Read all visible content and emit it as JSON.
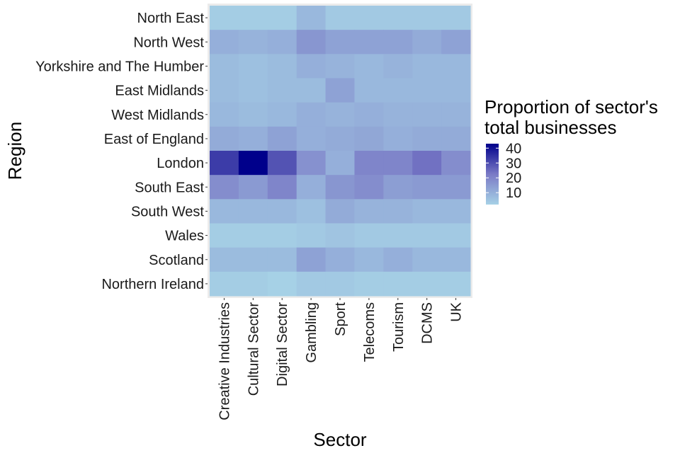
{
  "chart_data": {
    "type": "heatmap",
    "xlabel": "Sector",
    "ylabel": "Region",
    "x_categories": [
      "Creative Industries",
      "Cultural Sector",
      "Digital Sector",
      "Gambling",
      "Sport",
      "Telecoms",
      "Tourism",
      "DCMS",
      "UK"
    ],
    "y_categories": [
      "North East",
      "North West",
      "Yorkshire and The Humber",
      "East Midlands",
      "West Midlands",
      "East of England",
      "London",
      "South East",
      "South West",
      "Wales",
      "Scotland",
      "Northern Ireland"
    ],
    "values": [
      [
        3,
        3,
        3,
        8,
        4,
        4,
        4,
        4,
        4
      ],
      [
        10,
        9,
        10,
        16,
        13,
        13,
        13,
        11,
        13
      ],
      [
        7,
        6,
        7,
        10,
        9,
        8,
        9,
        8,
        8
      ],
      [
        7,
        6,
        7,
        7,
        13,
        8,
        8,
        8,
        8
      ],
      [
        8,
        7,
        8,
        10,
        9,
        10,
        9,
        9,
        9
      ],
      [
        11,
        10,
        13,
        10,
        11,
        12,
        10,
        11,
        11
      ],
      [
        33,
        43,
        29,
        17,
        10,
        20,
        20,
        24,
        18
      ],
      [
        18,
        15,
        20,
        10,
        16,
        18,
        14,
        15,
        15
      ],
      [
        8,
        8,
        8,
        6,
        11,
        9,
        9,
        8,
        8
      ],
      [
        3,
        3,
        3,
        4,
        5,
        4,
        4,
        4,
        4
      ],
      [
        7,
        7,
        7,
        13,
        10,
        8,
        10,
        8,
        8
      ],
      [
        3,
        3,
        2,
        4,
        4,
        3,
        3,
        3,
        3
      ]
    ],
    "legend": {
      "title_lines": [
        "Proportion of sector's",
        "total businesses"
      ],
      "ticks": [
        10,
        20,
        30,
        40
      ],
      "range": [
        2,
        43
      ],
      "color_low": "#a6d1e6",
      "color_mid": "#7a7ac6",
      "color_high": "#00008b"
    },
    "panel_background": "#ebebeb"
  }
}
